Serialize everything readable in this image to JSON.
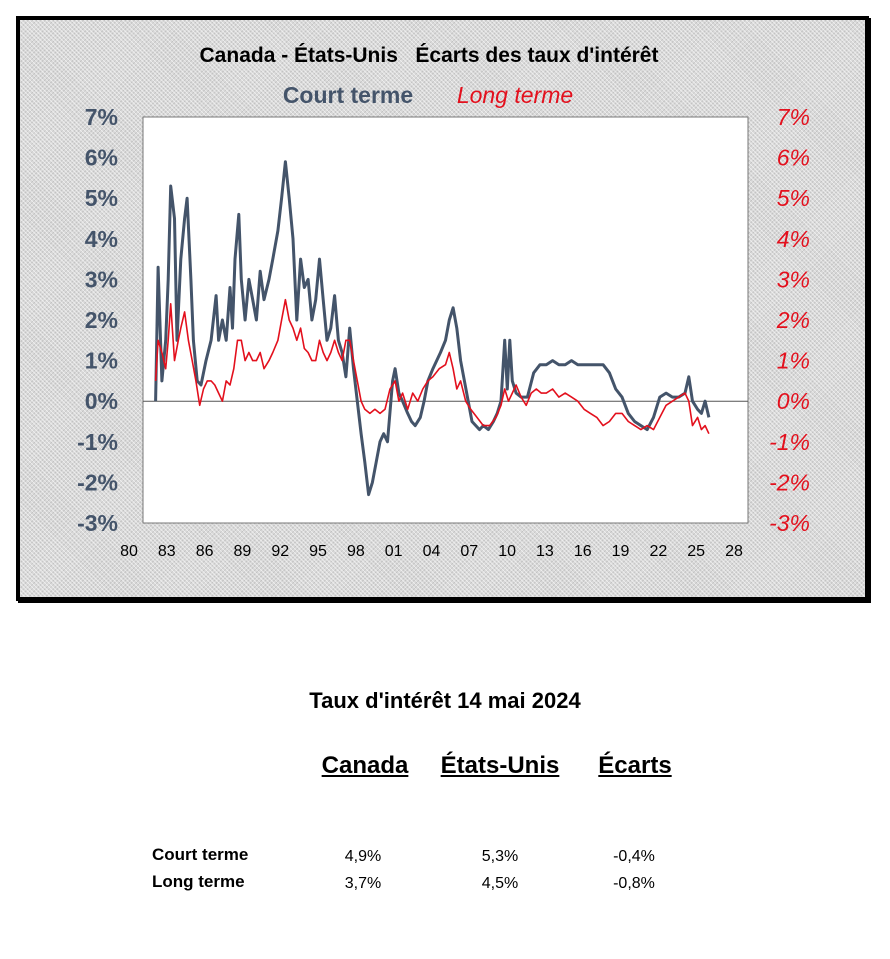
{
  "chart_data": {
    "type": "line",
    "title": "Canada - États-Unis   Écarts des taux d'intérêt",
    "series": [
      {
        "name": "Court terme",
        "color": "#44546a",
        "axis": "left",
        "points": [
          [
            1981.0,
            0.0
          ],
          [
            1981.2,
            3.3
          ],
          [
            1981.5,
            0.5
          ],
          [
            1981.8,
            1.5
          ],
          [
            1982.0,
            3.0
          ],
          [
            1982.2,
            5.3
          ],
          [
            1982.5,
            4.5
          ],
          [
            1982.7,
            1.5
          ],
          [
            1983.0,
            3.5
          ],
          [
            1983.3,
            4.5
          ],
          [
            1983.5,
            5.0
          ],
          [
            1983.8,
            3.0
          ],
          [
            1984.0,
            1.5
          ],
          [
            1984.3,
            0.5
          ],
          [
            1984.6,
            0.4
          ],
          [
            1985.0,
            1.0
          ],
          [
            1985.4,
            1.5
          ],
          [
            1985.8,
            2.6
          ],
          [
            1986.0,
            1.5
          ],
          [
            1986.3,
            2.0
          ],
          [
            1986.6,
            1.5
          ],
          [
            1986.9,
            2.8
          ],
          [
            1987.1,
            1.8
          ],
          [
            1987.3,
            3.5
          ],
          [
            1987.6,
            4.6
          ],
          [
            1987.8,
            3.0
          ],
          [
            1988.1,
            2.0
          ],
          [
            1988.4,
            3.0
          ],
          [
            1988.7,
            2.5
          ],
          [
            1989.0,
            2.0
          ],
          [
            1989.3,
            3.2
          ],
          [
            1989.6,
            2.5
          ],
          [
            1990.0,
            3.0
          ],
          [
            1990.3,
            3.5
          ],
          [
            1990.7,
            4.2
          ],
          [
            1991.0,
            5.0
          ],
          [
            1991.3,
            5.9
          ],
          [
            1991.6,
            5.0
          ],
          [
            1991.9,
            4.0
          ],
          [
            1992.2,
            2.0
          ],
          [
            1992.5,
            3.5
          ],
          [
            1992.8,
            2.8
          ],
          [
            1993.1,
            3.0
          ],
          [
            1993.4,
            2.0
          ],
          [
            1993.7,
            2.5
          ],
          [
            1994.0,
            3.5
          ],
          [
            1994.3,
            2.5
          ],
          [
            1994.6,
            1.5
          ],
          [
            1994.9,
            1.8
          ],
          [
            1995.2,
            2.6
          ],
          [
            1995.5,
            1.5
          ],
          [
            1995.8,
            1.2
          ],
          [
            1996.1,
            0.6
          ],
          [
            1996.4,
            1.8
          ],
          [
            1996.7,
            0.8
          ],
          [
            1997.0,
            0.0
          ],
          [
            1997.3,
            -0.8
          ],
          [
            1997.6,
            -1.5
          ],
          [
            1997.9,
            -2.3
          ],
          [
            1998.2,
            -2.0
          ],
          [
            1998.5,
            -1.5
          ],
          [
            1998.8,
            -1.0
          ],
          [
            1999.1,
            -0.8
          ],
          [
            1999.4,
            -1.0
          ],
          [
            1999.8,
            0.5
          ],
          [
            2000.0,
            0.8
          ],
          [
            2000.3,
            0.2
          ],
          [
            2000.6,
            0.0
          ],
          [
            2001.0,
            -0.3
          ],
          [
            2001.3,
            -0.5
          ],
          [
            2001.6,
            -0.6
          ],
          [
            2002.0,
            -0.4
          ],
          [
            2002.3,
            0.0
          ],
          [
            2002.6,
            0.5
          ],
          [
            2003.0,
            0.8
          ],
          [
            2003.3,
            1.0
          ],
          [
            2003.6,
            1.2
          ],
          [
            2004.0,
            1.5
          ],
          [
            2004.3,
            2.0
          ],
          [
            2004.6,
            2.3
          ],
          [
            2004.9,
            1.8
          ],
          [
            2005.2,
            1.0
          ],
          [
            2005.5,
            0.5
          ],
          [
            2005.8,
            0.0
          ],
          [
            2006.1,
            -0.5
          ],
          [
            2006.4,
            -0.6
          ],
          [
            2006.7,
            -0.7
          ],
          [
            2007.0,
            -0.6
          ],
          [
            2007.4,
            -0.7
          ],
          [
            2007.8,
            -0.5
          ],
          [
            2008.1,
            -0.3
          ],
          [
            2008.4,
            0.0
          ],
          [
            2008.7,
            1.5
          ],
          [
            2008.9,
            0.3
          ],
          [
            2009.1,
            1.5
          ],
          [
            2009.3,
            0.5
          ],
          [
            2009.6,
            0.2
          ],
          [
            2010.0,
            0.1
          ],
          [
            2010.5,
            0.1
          ],
          [
            2011.0,
            0.7
          ],
          [
            2011.5,
            0.9
          ],
          [
            2012.0,
            0.9
          ],
          [
            2012.5,
            1.0
          ],
          [
            2013.0,
            0.9
          ],
          [
            2013.5,
            0.9
          ],
          [
            2014.0,
            1.0
          ],
          [
            2014.5,
            0.9
          ],
          [
            2015.0,
            0.9
          ],
          [
            2015.5,
            0.9
          ],
          [
            2016.0,
            0.9
          ],
          [
            2016.5,
            0.9
          ],
          [
            2017.0,
            0.7
          ],
          [
            2017.5,
            0.3
          ],
          [
            2018.0,
            0.1
          ],
          [
            2018.5,
            -0.3
          ],
          [
            2019.0,
            -0.5
          ],
          [
            2019.5,
            -0.6
          ],
          [
            2020.0,
            -0.7
          ],
          [
            2020.5,
            -0.4
          ],
          [
            2021.0,
            0.1
          ],
          [
            2021.5,
            0.2
          ],
          [
            2022.0,
            0.1
          ],
          [
            2022.5,
            0.1
          ],
          [
            2023.0,
            0.2
          ],
          [
            2023.3,
            0.6
          ],
          [
            2023.6,
            0.0
          ],
          [
            2024.0,
            -0.2
          ],
          [
            2024.3,
            -0.3
          ],
          [
            2024.6,
            0.0
          ],
          [
            2024.9,
            -0.4
          ]
        ]
      },
      {
        "name": "Long terme",
        "color": "#e3101d",
        "axis": "right",
        "points": [
          [
            1981.0,
            0.5
          ],
          [
            1981.2,
            1.5
          ],
          [
            1981.5,
            1.2
          ],
          [
            1981.8,
            0.8
          ],
          [
            1982.0,
            1.5
          ],
          [
            1982.2,
            2.4
          ],
          [
            1982.5,
            1.0
          ],
          [
            1982.8,
            1.5
          ],
          [
            1983.0,
            1.8
          ],
          [
            1983.3,
            2.2
          ],
          [
            1983.6,
            1.5
          ],
          [
            1983.9,
            1.0
          ],
          [
            1984.2,
            0.5
          ],
          [
            1984.5,
            -0.1
          ],
          [
            1984.8,
            0.3
          ],
          [
            1985.1,
            0.5
          ],
          [
            1985.4,
            0.5
          ],
          [
            1985.7,
            0.4
          ],
          [
            1986.0,
            0.2
          ],
          [
            1986.3,
            0.0
          ],
          [
            1986.6,
            0.5
          ],
          [
            1986.9,
            0.4
          ],
          [
            1987.2,
            0.8
          ],
          [
            1987.5,
            1.5
          ],
          [
            1987.8,
            1.5
          ],
          [
            1988.1,
            1.0
          ],
          [
            1988.4,
            1.2
          ],
          [
            1988.7,
            1.0
          ],
          [
            1989.0,
            1.0
          ],
          [
            1989.3,
            1.2
          ],
          [
            1989.6,
            0.8
          ],
          [
            1990.0,
            1.0
          ],
          [
            1990.3,
            1.2
          ],
          [
            1990.7,
            1.5
          ],
          [
            1991.0,
            2.0
          ],
          [
            1991.3,
            2.5
          ],
          [
            1991.6,
            2.0
          ],
          [
            1991.9,
            1.8
          ],
          [
            1992.2,
            1.5
          ],
          [
            1992.5,
            1.8
          ],
          [
            1992.8,
            1.3
          ],
          [
            1993.1,
            1.2
          ],
          [
            1993.4,
            1.0
          ],
          [
            1993.7,
            1.0
          ],
          [
            1994.0,
            1.5
          ],
          [
            1994.3,
            1.2
          ],
          [
            1994.6,
            1.0
          ],
          [
            1994.9,
            1.2
          ],
          [
            1995.2,
            1.5
          ],
          [
            1995.5,
            1.2
          ],
          [
            1995.8,
            1.0
          ],
          [
            1996.1,
            1.5
          ],
          [
            1996.4,
            1.5
          ],
          [
            1996.7,
            1.0
          ],
          [
            1997.0,
            0.5
          ],
          [
            1997.3,
            0.0
          ],
          [
            1997.6,
            -0.2
          ],
          [
            1998.0,
            -0.3
          ],
          [
            1998.4,
            -0.2
          ],
          [
            1998.8,
            -0.3
          ],
          [
            1999.2,
            -0.2
          ],
          [
            1999.6,
            0.3
          ],
          [
            2000.0,
            0.5
          ],
          [
            2000.3,
            0.0
          ],
          [
            2000.6,
            0.2
          ],
          [
            2001.0,
            -0.2
          ],
          [
            2001.4,
            0.2
          ],
          [
            2001.8,
            0.0
          ],
          [
            2002.2,
            0.3
          ],
          [
            2002.6,
            0.5
          ],
          [
            2003.0,
            0.6
          ],
          [
            2003.5,
            0.8
          ],
          [
            2004.0,
            0.9
          ],
          [
            2004.3,
            1.2
          ],
          [
            2004.6,
            0.8
          ],
          [
            2004.9,
            0.3
          ],
          [
            2005.2,
            0.5
          ],
          [
            2005.6,
            0.0
          ],
          [
            2006.0,
            -0.2
          ],
          [
            2006.5,
            -0.4
          ],
          [
            2007.0,
            -0.6
          ],
          [
            2007.5,
            -0.6
          ],
          [
            2008.0,
            -0.4
          ],
          [
            2008.4,
            -0.1
          ],
          [
            2008.7,
            0.3
          ],
          [
            2009.0,
            0.0
          ],
          [
            2009.3,
            0.2
          ],
          [
            2009.6,
            0.4
          ],
          [
            2010.0,
            0.1
          ],
          [
            2010.4,
            -0.1
          ],
          [
            2010.8,
            0.2
          ],
          [
            2011.2,
            0.3
          ],
          [
            2011.6,
            0.2
          ],
          [
            2012.0,
            0.2
          ],
          [
            2012.5,
            0.3
          ],
          [
            2013.0,
            0.1
          ],
          [
            2013.5,
            0.2
          ],
          [
            2014.0,
            0.1
          ],
          [
            2014.5,
            0.0
          ],
          [
            2015.0,
            -0.2
          ],
          [
            2015.5,
            -0.3
          ],
          [
            2016.0,
            -0.4
          ],
          [
            2016.5,
            -0.6
          ],
          [
            2017.0,
            -0.5
          ],
          [
            2017.5,
            -0.3
          ],
          [
            2018.0,
            -0.3
          ],
          [
            2018.5,
            -0.5
          ],
          [
            2019.0,
            -0.6
          ],
          [
            2019.5,
            -0.7
          ],
          [
            2020.0,
            -0.6
          ],
          [
            2020.5,
            -0.7
          ],
          [
            2021.0,
            -0.4
          ],
          [
            2021.5,
            -0.1
          ],
          [
            2022.0,
            0.0
          ],
          [
            2022.5,
            0.1
          ],
          [
            2023.0,
            0.2
          ],
          [
            2023.3,
            0.0
          ],
          [
            2023.6,
            -0.6
          ],
          [
            2024.0,
            -0.4
          ],
          [
            2024.3,
            -0.7
          ],
          [
            2024.6,
            -0.6
          ],
          [
            2024.9,
            -0.8
          ]
        ]
      }
    ],
    "xlim": [
      1980,
      2028
    ],
    "ylim": [
      -3,
      7
    ],
    "x_ticks": [
      "80",
      "83",
      "86",
      "89",
      "92",
      "95",
      "98",
      "01",
      "04",
      "07",
      "10",
      "13",
      "16",
      "19",
      "22",
      "25",
      "28"
    ],
    "y_ticks_left": [
      "7%",
      "6%",
      "5%",
      "4%",
      "3%",
      "2%",
      "1%",
      "0%",
      "-1%",
      "-2%",
      "-3%"
    ],
    "y_ticks_right": [
      "7%",
      "6%",
      "5%",
      "4%",
      "3%",
      "2%",
      "1%",
      "0%",
      "-1%",
      "-2%",
      "-3%"
    ],
    "zero_line": true,
    "grid": false,
    "legend": "top-center"
  },
  "summary": {
    "title": "Taux d'intérêt 14 mai 2024",
    "columns": [
      "Canada",
      "États-Unis",
      "Écarts"
    ],
    "rows": [
      {
        "label": "Court terme",
        "values": [
          "4,9%",
          "5,3%",
          "-0,4%"
        ]
      },
      {
        "label": "Long terme",
        "values": [
          "3,7%",
          "4,5%",
          "-0,8%"
        ]
      }
    ]
  }
}
